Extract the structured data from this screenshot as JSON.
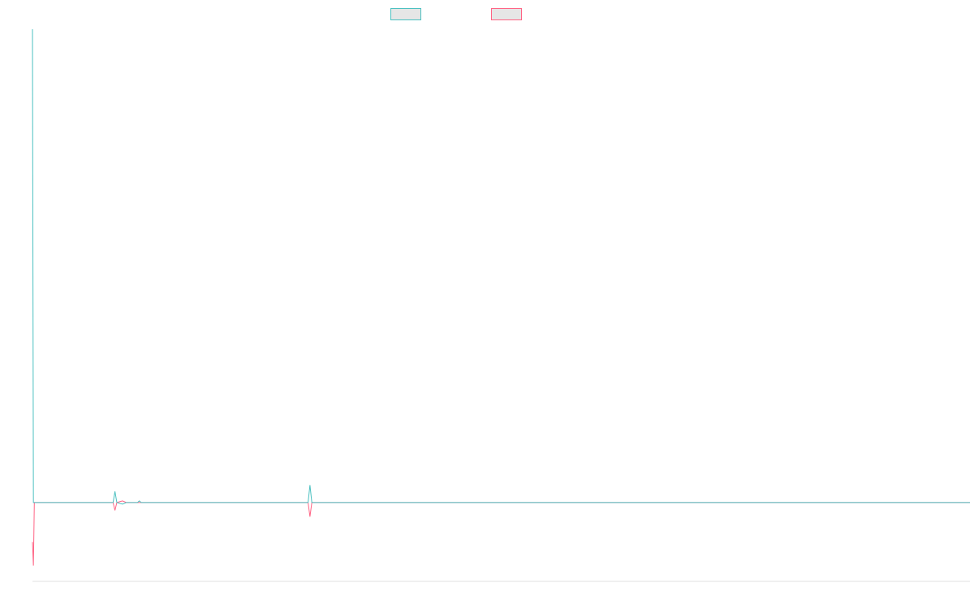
{
  "chart_data": {
    "type": "line",
    "title": "",
    "xlabel": "",
    "ylabel": "",
    "legend": "top",
    "grid": false,
    "xlim": [
      0,
      1000
    ],
    "ylim": [
      -100,
      600
    ],
    "x": [
      0,
      1,
      2,
      3,
      4,
      86,
      88,
      90,
      96,
      100,
      112,
      114,
      116,
      294,
      296,
      298,
      1000
    ],
    "series": [
      {
        "color": "#4bc0c0",
        "values": [
          600,
          0,
          0,
          0,
          0,
          0,
          14,
          0,
          -2,
          0,
          0,
          2,
          0,
          0,
          22,
          0,
          0
        ]
      },
      {
        "color": "#ff6384",
        "values": [
          -50,
          -80,
          0,
          0,
          0,
          0,
          -10,
          0,
          2,
          0,
          0,
          0,
          0,
          0,
          -18,
          0,
          0
        ]
      }
    ]
  }
}
